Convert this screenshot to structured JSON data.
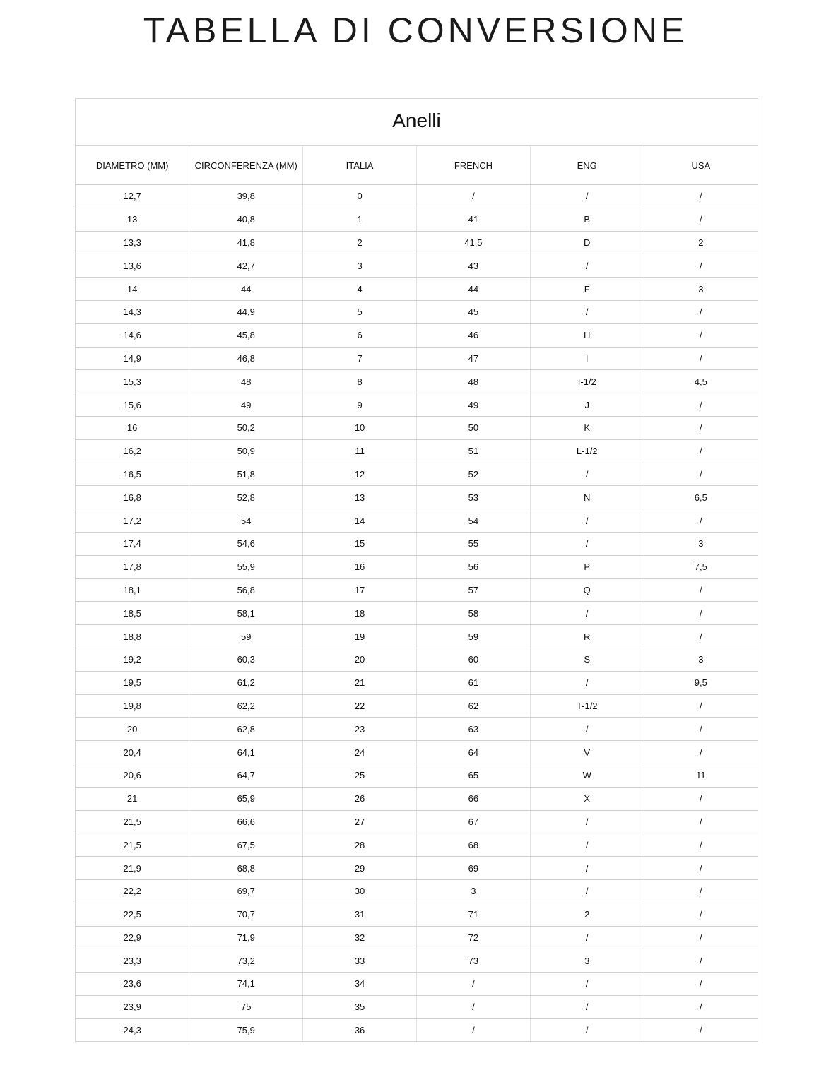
{
  "title": "TABELLA DI CONVERSIONE",
  "table": {
    "caption": "Anelli",
    "headers": [
      "DIAMETRO (MM)",
      "CIRCONFERENZA (MM)",
      "ITALIA",
      "FRENCH",
      "ENG",
      "USA"
    ],
    "rows": [
      [
        "12,7",
        "39,8",
        "0",
        "/",
        "/",
        "/"
      ],
      [
        "13",
        "40,8",
        "1",
        "41",
        "B",
        "/"
      ],
      [
        "13,3",
        "41,8",
        "2",
        "41,5",
        "D",
        "2"
      ],
      [
        "13,6",
        "42,7",
        "3",
        "43",
        "/",
        "/"
      ],
      [
        "14",
        "44",
        "4",
        "44",
        "F",
        "3"
      ],
      [
        "14,3",
        "44,9",
        "5",
        "45",
        "/",
        "/"
      ],
      [
        "14,6",
        "45,8",
        "6",
        "46",
        "H",
        "/"
      ],
      [
        "14,9",
        "46,8",
        "7",
        "47",
        "I",
        "/"
      ],
      [
        "15,3",
        "48",
        "8",
        "48",
        "I-1/2",
        "4,5"
      ],
      [
        "15,6",
        "49",
        "9",
        "49",
        "J",
        "/"
      ],
      [
        "16",
        "50,2",
        "10",
        "50",
        "K",
        "/"
      ],
      [
        "16,2",
        "50,9",
        "11",
        "51",
        "L-1/2",
        "/"
      ],
      [
        "16,5",
        "51,8",
        "12",
        "52",
        "/",
        "/"
      ],
      [
        "16,8",
        "52,8",
        "13",
        "53",
        "N",
        "6,5"
      ],
      [
        "17,2",
        "54",
        "14",
        "54",
        "/",
        "/"
      ],
      [
        "17,4",
        "54,6",
        "15",
        "55",
        "/",
        "3"
      ],
      [
        "17,8",
        "55,9",
        "16",
        "56",
        "P",
        "7,5"
      ],
      [
        "18,1",
        "56,8",
        "17",
        "57",
        "Q",
        "/"
      ],
      [
        "18,5",
        "58,1",
        "18",
        "58",
        "/",
        "/"
      ],
      [
        "18,8",
        "59",
        "19",
        "59",
        "R",
        "/"
      ],
      [
        "19,2",
        "60,3",
        "20",
        "60",
        "S",
        "3"
      ],
      [
        "19,5",
        "61,2",
        "21",
        "61",
        "/",
        "9,5"
      ],
      [
        "19,8",
        "62,2",
        "22",
        "62",
        "T-1/2",
        "/"
      ],
      [
        "20",
        "62,8",
        "23",
        "63",
        "/",
        "/"
      ],
      [
        "20,4",
        "64,1",
        "24",
        "64",
        "V",
        "/"
      ],
      [
        "20,6",
        "64,7",
        "25",
        "65",
        "W",
        "11"
      ],
      [
        "21",
        "65,9",
        "26",
        "66",
        "X",
        "/"
      ],
      [
        "21,5",
        "66,6",
        "27",
        "67",
        "/",
        "/"
      ],
      [
        "21,5",
        "67,5",
        "28",
        "68",
        "/",
        "/"
      ],
      [
        "21,9",
        "68,8",
        "29",
        "69",
        "/",
        "/"
      ],
      [
        "22,2",
        "69,7",
        "30",
        "3",
        "/",
        "/"
      ],
      [
        "22,5",
        "70,7",
        "31",
        "71",
        "2",
        "/"
      ],
      [
        "22,9",
        "71,9",
        "32",
        "72",
        "/",
        "/"
      ],
      [
        "23,3",
        "73,2",
        "33",
        "73",
        "3",
        "/"
      ],
      [
        "23,6",
        "74,1",
        "34",
        "/",
        "/",
        "/"
      ],
      [
        "23,9",
        "75",
        "35",
        "/",
        "/",
        "/"
      ],
      [
        "24,3",
        "75,9",
        "36",
        "/",
        "/",
        "/"
      ]
    ]
  }
}
